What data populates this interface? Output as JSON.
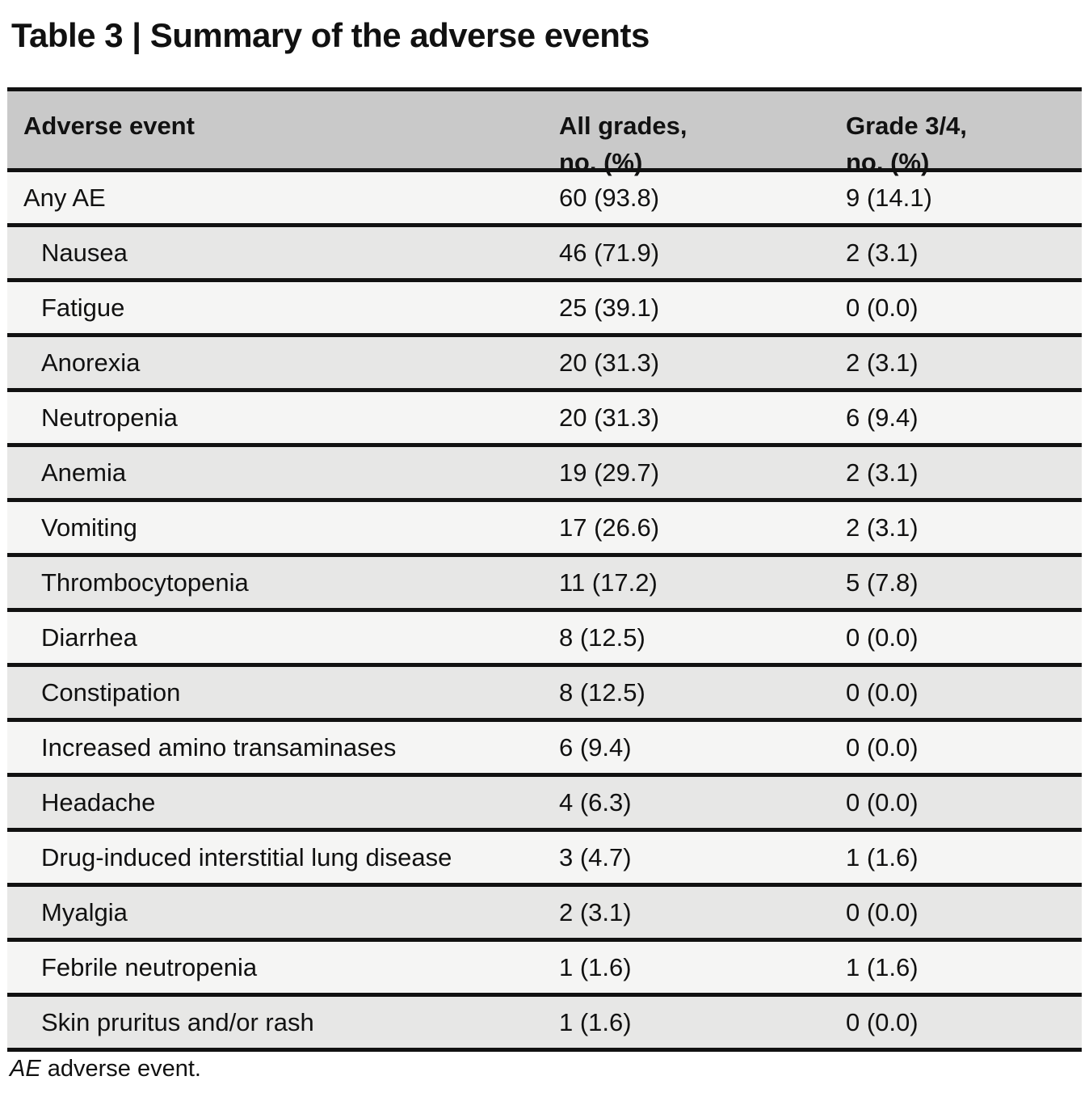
{
  "title": "Table 3 | Summary of the adverse events",
  "table": {
    "columns": [
      {
        "label": "Adverse event"
      },
      {
        "line1": "All grades,",
        "line2": "no. (%)"
      },
      {
        "line1": "Grade 3/4,",
        "line2": "no. (%)"
      }
    ],
    "rows": [
      {
        "event": "Any AE",
        "indent": false,
        "all_grades": "60 (93.8)",
        "grade34": "9 (14.1)"
      },
      {
        "event": "Nausea",
        "indent": true,
        "all_grades": "46 (71.9)",
        "grade34": "2 (3.1)"
      },
      {
        "event": "Fatigue",
        "indent": true,
        "all_grades": "25 (39.1)",
        "grade34": "0 (0.0)"
      },
      {
        "event": "Anorexia",
        "indent": true,
        "all_grades": "20 (31.3)",
        "grade34": "2 (3.1)"
      },
      {
        "event": "Neutropenia",
        "indent": true,
        "all_grades": "20 (31.3)",
        "grade34": "6 (9.4)"
      },
      {
        "event": "Anemia",
        "indent": true,
        "all_grades": "19 (29.7)",
        "grade34": "2 (3.1)"
      },
      {
        "event": "Vomiting",
        "indent": true,
        "all_grades": "17 (26.6)",
        "grade34": "2 (3.1)"
      },
      {
        "event": "Thrombocytopenia",
        "indent": true,
        "all_grades": "11 (17.2)",
        "grade34": "5 (7.8)"
      },
      {
        "event": "Diarrhea",
        "indent": true,
        "all_grades": "8 (12.5)",
        "grade34": "0 (0.0)"
      },
      {
        "event": "Constipation",
        "indent": true,
        "all_grades": "8 (12.5)",
        "grade34": "0 (0.0)"
      },
      {
        "event": "Increased amino transaminases",
        "indent": true,
        "all_grades": "6 (9.4)",
        "grade34": "0 (0.0)"
      },
      {
        "event": "Headache",
        "indent": true,
        "all_grades": "4 (6.3)",
        "grade34": "0 (0.0)"
      },
      {
        "event": "Drug-induced interstitial lung disease",
        "indent": true,
        "all_grades": "3 (4.7)",
        "grade34": "1 (1.6)"
      },
      {
        "event": "Myalgia",
        "indent": true,
        "all_grades": "2 (3.1)",
        "grade34": "0 (0.0)"
      },
      {
        "event": "Febrile neutropenia",
        "indent": true,
        "all_grades": "1 (1.6)",
        "grade34": "1 (1.6)"
      },
      {
        "event": "Skin pruritus and/or rash",
        "indent": true,
        "all_grades": "1 (1.6)",
        "grade34": "0 (0.0)"
      }
    ]
  },
  "footnote": {
    "abbr": "AE",
    "text": " adverse event."
  },
  "colors": {
    "header_bg": "#c9c9c9",
    "row_light": "#f5f5f4",
    "row_dark": "#e7e7e6",
    "rule": "#111111",
    "text": "#111111"
  }
}
